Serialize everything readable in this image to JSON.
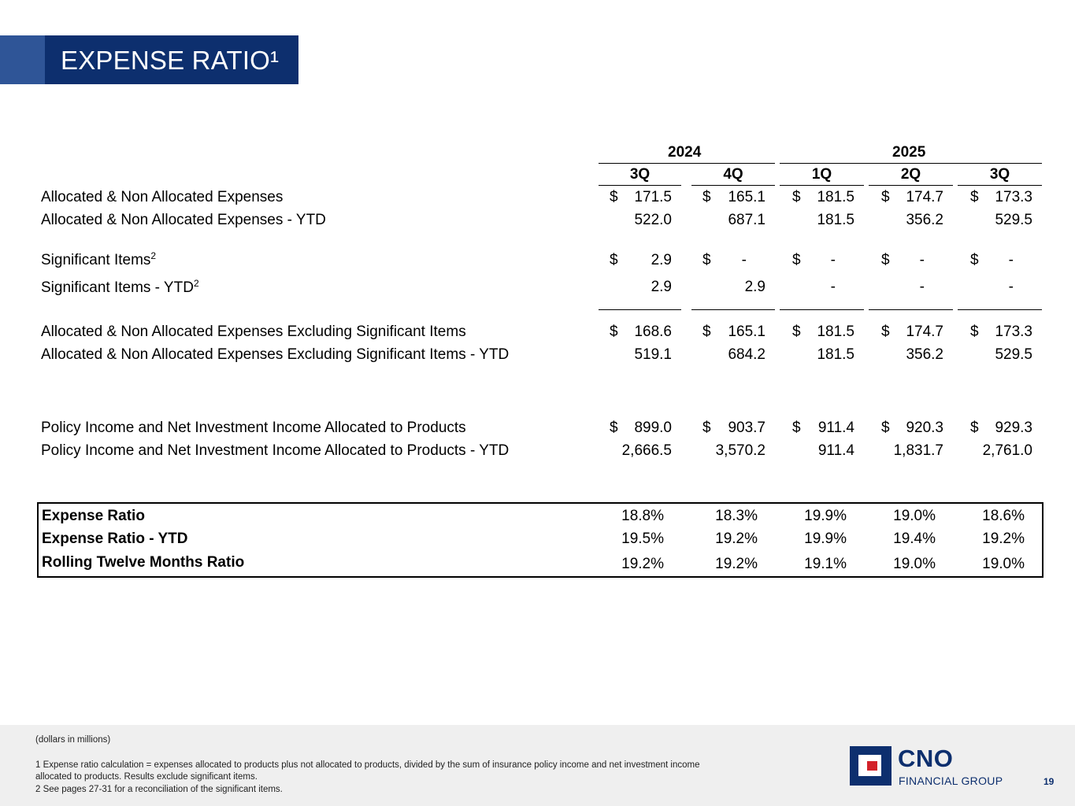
{
  "title": "EXPENSE RATIO¹",
  "years": [
    "2024",
    "2025"
  ],
  "quarters": [
    "3Q",
    "4Q",
    "1Q",
    "2Q",
    "3Q"
  ],
  "currency_symbol": "$",
  "rows": {
    "alloc_exp": {
      "label": "Allocated & Non Allocated Expenses",
      "values": [
        "171.5",
        "165.1",
        "181.5",
        "174.7",
        "173.3"
      ]
    },
    "alloc_exp_ytd": {
      "label": "Allocated & Non Allocated Expenses - YTD",
      "values": [
        "522.0",
        "687.1",
        "181.5",
        "356.2",
        "529.5"
      ]
    },
    "sig_items": {
      "label": "Significant Items",
      "note": "2",
      "values": [
        "2.9",
        "-",
        "-",
        "-",
        "-"
      ]
    },
    "sig_items_ytd": {
      "label": "Significant Items - YTD",
      "note": "2",
      "values": [
        "2.9",
        "2.9",
        "-",
        "-",
        "-"
      ]
    },
    "alloc_excl": {
      "label": "Allocated & Non Allocated Expenses Excluding Significant Items",
      "values": [
        "168.6",
        "165.1",
        "181.5",
        "174.7",
        "173.3"
      ]
    },
    "alloc_excl_ytd": {
      "label": "Allocated & Non Allocated Expenses Excluding Significant Items - YTD",
      "values": [
        "519.1",
        "684.2",
        "181.5",
        "356.2",
        "529.5"
      ]
    },
    "policy_income": {
      "label": "Policy Income and Net Investment Income Allocated to Products",
      "values": [
        "899.0",
        "903.7",
        "911.4",
        "920.3",
        "929.3"
      ]
    },
    "policy_income_ytd": {
      "label": "Policy Income and Net Investment Income Allocated to Products - YTD",
      "values": [
        "2,666.5",
        "3,570.2",
        "911.4",
        "1,831.7",
        "2,761.0"
      ]
    }
  },
  "ratios": {
    "expense_ratio": {
      "label": "Expense Ratio",
      "values": [
        "18.8%",
        "18.3%",
        "19.9%",
        "19.0%",
        "18.6%"
      ]
    },
    "expense_ratio_ytd": {
      "label": "Expense Ratio - YTD",
      "values": [
        "19.5%",
        "19.2%",
        "19.9%",
        "19.4%",
        "19.2%"
      ]
    },
    "rolling_twelve": {
      "label": "Rolling Twelve Months Ratio",
      "values": [
        "19.2%",
        "19.2%",
        "19.1%",
        "19.0%",
        "19.0%"
      ]
    }
  },
  "footnotes": {
    "units": "(dollars in millions)",
    "note1_line1": "1  Expense ratio calculation = expenses allocated to products plus not allocated to products, divided by the sum of insurance policy income and net investment income",
    "note1_line2": "allocated to products. Results exclude significant items.",
    "note2": "2  See pages 27-31 for a reconciliation of the significant items."
  },
  "logo": {
    "name": "CNO",
    "subtitle": "FINANCIAL GROUP",
    "brand_color": "#0d2f6e",
    "accent_color": "#d3222a"
  },
  "page_number": "19"
}
